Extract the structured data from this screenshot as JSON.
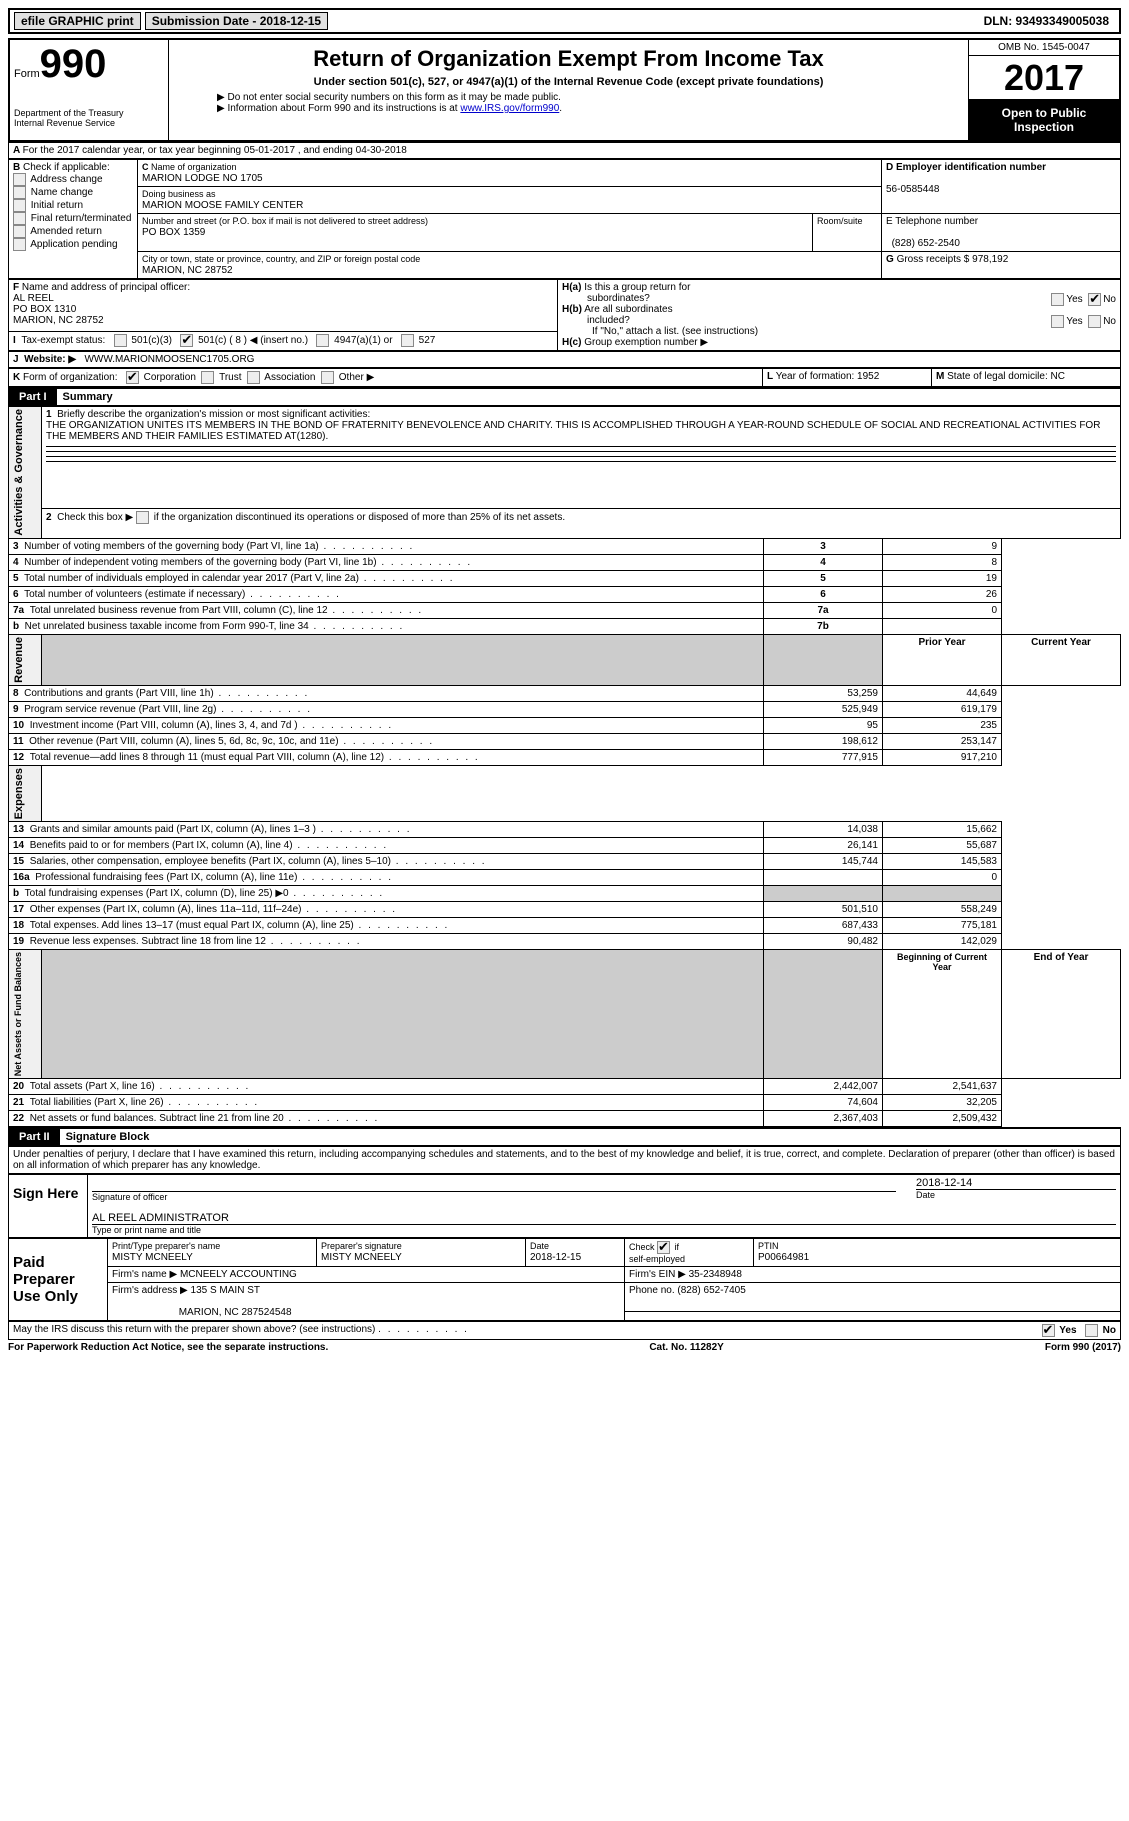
{
  "topbar": {
    "efile": "efile GRAPHIC print",
    "submission_label": "Submission Date - 2018-12-15",
    "dln_label": "DLN: 93493349005038"
  },
  "header": {
    "form_word": "Form",
    "form_number": "990",
    "dept1": "Department of the Treasury",
    "dept2": "Internal Revenue Service",
    "title": "Return of Organization Exempt From Income Tax",
    "subtitle": "Under section 501(c), 527, or 4947(a)(1) of the Internal Revenue Code (except private foundations)",
    "note1": "▶ Do not enter social security numbers on this form as it may be made public.",
    "note2a": "▶ Information about Form 990 and its instructions is at ",
    "note2b": "www.IRS.gov/form990",
    "note2c": ".",
    "omb": "OMB No. 1545-0047",
    "year": "2017",
    "open_public": "Open to Public Inspection"
  },
  "row_a": "For the 2017 calendar year, or tax year beginning 05-01-2017      , and ending 04-30-2018",
  "section_b": {
    "label": "B",
    "check_label": "Check if applicable:",
    "items": [
      "Address change",
      "Name change",
      "Initial return",
      "Final return/terminated",
      "Amended return",
      "Application pending"
    ]
  },
  "section_c": {
    "label": "C",
    "name_label": "Name of organization",
    "name": "MARION LODGE NO 1705",
    "dba_label": "Doing business as",
    "dba": "MARION MOOSE FAMILY CENTER",
    "street_label": "Number and street (or P.O. box if mail is not delivered to street address)",
    "room_label": "Room/suite",
    "street": "PO BOX 1359",
    "city_label": "City or town, state or province, country, and ZIP or foreign postal code",
    "city": "MARION, NC  28752"
  },
  "section_d": {
    "label": "D Employer identification number",
    "value": "56-0585448"
  },
  "section_e": {
    "label": "E Telephone number",
    "value": "(828) 652-2540"
  },
  "section_g": {
    "label": "G",
    "text": "Gross receipts $ 978,192"
  },
  "section_f": {
    "label": "F",
    "text": "Name and address of principal officer:",
    "name": "AL REEL",
    "addr1": "PO BOX 1310",
    "addr2": "MARION, NC  28752"
  },
  "section_h": {
    "ha": "H(a)  Is this a group return for subordinates?",
    "hb": "H(b)  Are all subordinates included?",
    "hb_note": "If \"No,\" attach a list. (see instructions)",
    "hc": "H(c)  Group exemption number ▶",
    "yes": "Yes",
    "no": "No"
  },
  "section_i": {
    "label": "I",
    "text": "Tax-exempt status:",
    "opt1": "501(c)(3)",
    "opt2": "501(c) ( 8 ) ◀ (insert no.)",
    "opt3": "4947(a)(1) or",
    "opt4": "527"
  },
  "section_j": {
    "label": "J",
    "text": "Website: ▶",
    "value": "WWW.MARIONMOOSENC1705.ORG"
  },
  "section_k": {
    "label": "K",
    "text": "Form of organization:",
    "opts": [
      "Corporation",
      "Trust",
      "Association",
      "Other ▶"
    ]
  },
  "section_l": {
    "label": "L",
    "text": "Year of formation: 1952"
  },
  "section_m": {
    "label": "M",
    "text": "State of legal domicile: NC"
  },
  "part1": {
    "tag": "Part I",
    "title": "Summary",
    "line1_label": "1",
    "line1_text": "Briefly describe the organization's mission or most significant activities:",
    "line1_body": "THE ORGANIZATION UNITES ITS MEMBERS IN THE BOND OF FRATERNITY BENEVOLENCE AND CHARITY. THIS IS ACCOMPLISHED THROUGH A YEAR-ROUND SCHEDULE OF SOCIAL AND RECREATIONAL ACTIVITIES FOR THE MEMBERS AND THEIR FAMILIES ESTIMATED AT(1280).",
    "line2": "Check this box ▶         if the organization discontinued its operations or disposed of more than 25% of its net assets.",
    "rot1": "Activities & Governance",
    "rot2": "Revenue",
    "rot3": "Expenses",
    "rot4": "Net Assets or Fund Balances",
    "rows_gov": [
      {
        "n": "3",
        "t": "Number of voting members of the governing body (Part VI, line 1a)",
        "box": "3",
        "v": "9"
      },
      {
        "n": "4",
        "t": "Number of independent voting members of the governing body (Part VI, line 1b)",
        "box": "4",
        "v": "8"
      },
      {
        "n": "5",
        "t": "Total number of individuals employed in calendar year 2017 (Part V, line 2a)",
        "box": "5",
        "v": "19"
      },
      {
        "n": "6",
        "t": "Total number of volunteers (estimate if necessary)",
        "box": "6",
        "v": "26"
      },
      {
        "n": "7a",
        "t": "Total unrelated business revenue from Part VIII, column (C), line 12",
        "box": "7a",
        "v": "0"
      },
      {
        "n": "b",
        "t": "Net unrelated business taxable income from Form 990-T, line 34",
        "box": "7b",
        "v": ""
      }
    ],
    "col_prior": "Prior Year",
    "col_current": "Current Year",
    "col_boy": "Beginning of Current Year",
    "col_eoy": "End of Year",
    "rows_rev": [
      {
        "n": "8",
        "t": "Contributions and grants (Part VIII, line 1h)",
        "p": "53,259",
        "c": "44,649"
      },
      {
        "n": "9",
        "t": "Program service revenue (Part VIII, line 2g)",
        "p": "525,949",
        "c": "619,179"
      },
      {
        "n": "10",
        "t": "Investment income (Part VIII, column (A), lines 3, 4, and 7d )",
        "p": "95",
        "c": "235"
      },
      {
        "n": "11",
        "t": "Other revenue (Part VIII, column (A), lines 5, 6d, 8c, 9c, 10c, and 11e)",
        "p": "198,612",
        "c": "253,147"
      },
      {
        "n": "12",
        "t": "Total revenue—add lines 8 through 11 (must equal Part VIII, column (A), line 12)",
        "p": "777,915",
        "c": "917,210"
      }
    ],
    "rows_exp": [
      {
        "n": "13",
        "t": "Grants and similar amounts paid (Part IX, column (A), lines 1–3 )",
        "p": "14,038",
        "c": "15,662"
      },
      {
        "n": "14",
        "t": "Benefits paid to or for members (Part IX, column (A), line 4)",
        "p": "26,141",
        "c": "55,687"
      },
      {
        "n": "15",
        "t": "Salaries, other compensation, employee benefits (Part IX, column (A), lines 5–10)",
        "p": "145,744",
        "c": "145,583"
      },
      {
        "n": "16a",
        "t": "Professional fundraising fees (Part IX, column (A), line 11e)",
        "p": "",
        "c": "0"
      },
      {
        "n": "b",
        "t": "Total fundraising expenses (Part IX, column (D), line 25) ▶0",
        "p": "SHADE",
        "c": "SHADE"
      },
      {
        "n": "17",
        "t": "Other expenses (Part IX, column (A), lines 11a–11d, 11f–24e)",
        "p": "501,510",
        "c": "558,249"
      },
      {
        "n": "18",
        "t": "Total expenses. Add lines 13–17 (must equal Part IX, column (A), line 25)",
        "p": "687,433",
        "c": "775,181"
      },
      {
        "n": "19",
        "t": "Revenue less expenses. Subtract line 18 from line 12",
        "p": "90,482",
        "c": "142,029"
      }
    ],
    "rows_net": [
      {
        "n": "20",
        "t": "Total assets (Part X, line 16)",
        "p": "2,442,007",
        "c": "2,541,637"
      },
      {
        "n": "21",
        "t": "Total liabilities (Part X, line 26)",
        "p": "74,604",
        "c": "32,205"
      },
      {
        "n": "22",
        "t": "Net assets or fund balances. Subtract line 21 from line 20",
        "p": "2,367,403",
        "c": "2,509,432"
      }
    ]
  },
  "part2": {
    "tag": "Part II",
    "title": "Signature Block",
    "perjury": "Under penalties of perjury, I declare that I have examined this return, including accompanying schedules and statements, and to the best of my knowledge and belief, it is true, correct, and complete. Declaration of preparer (other than officer) is based on all information of which preparer has any knowledge.",
    "sign_here": "Sign Here",
    "sig_of_officer": "Signature of officer",
    "sig_date_label": "Date",
    "sig_date": "2018-12-14",
    "officer_name": "AL REEL ADMINISTRATOR",
    "type_name": "Type or print name and title",
    "paid_label": "Paid Preparer Use Only",
    "prep_name_label": "Print/Type preparer's name",
    "prep_name": "MISTY MCNEELY",
    "prep_sig_label": "Preparer's signature",
    "prep_sig": "MISTY MCNEELY",
    "prep_date_label": "Date",
    "prep_date": "2018-12-15",
    "check_self": "Check         if self-employed",
    "ptin_label": "PTIN",
    "ptin": "P00664981",
    "firm_name_label": "Firm's name      ▶",
    "firm_name": "MCNEELY ACCOUNTING",
    "firm_ein_label": "Firm's EIN ▶",
    "firm_ein": "35-2348948",
    "firm_addr_label": "Firm's address ▶",
    "firm_addr1": "135 S MAIN ST",
    "firm_addr2": "MARION, NC  287524548",
    "firm_phone_label": "Phone no.",
    "firm_phone": "(828) 652-7405",
    "discuss": "May the IRS discuss this return with the preparer shown above? (see instructions)",
    "yes": "Yes",
    "no": "No"
  },
  "footer": {
    "left": "For Paperwork Reduction Act Notice, see the separate instructions.",
    "center": "Cat. No. 11282Y",
    "right": "Form 990 (2017)"
  }
}
